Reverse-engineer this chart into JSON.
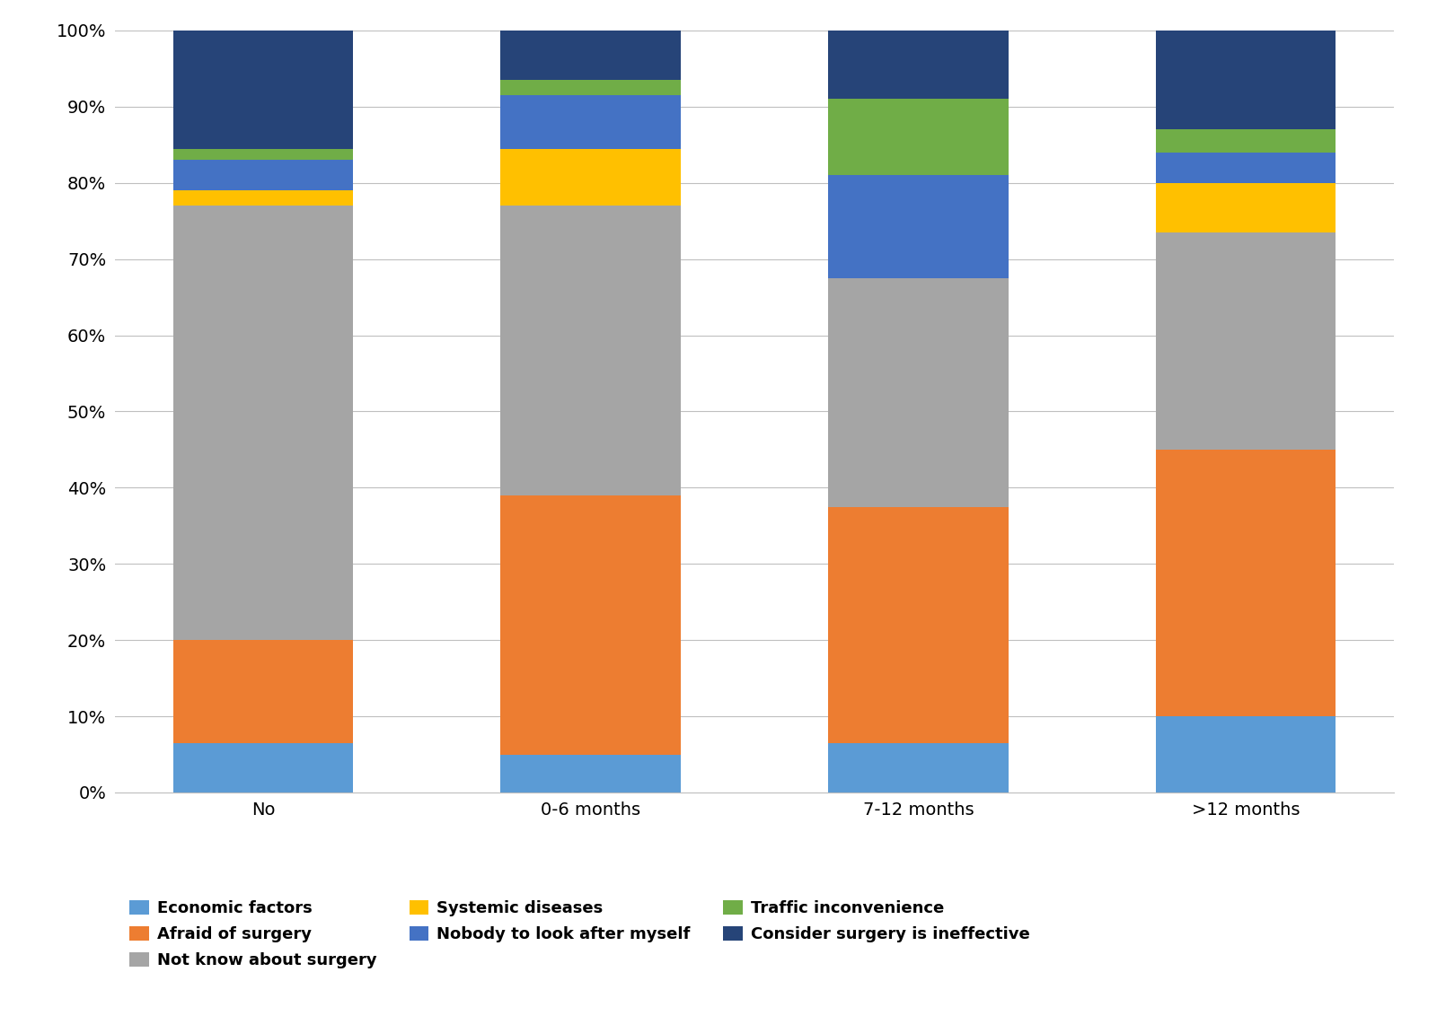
{
  "categories": [
    "No",
    "0-6 months",
    "7-12 months",
    ">12 months"
  ],
  "series": [
    {
      "label": "Economic factors",
      "color": "#5B9BD5",
      "values": [
        6.5,
        5.0,
        6.5,
        10.0
      ]
    },
    {
      "label": "Afraid of surgery",
      "color": "#ED7D31",
      "values": [
        13.5,
        34.0,
        31.0,
        35.0
      ]
    },
    {
      "label": "Not know about surgery",
      "color": "#A5A5A5",
      "values": [
        57.0,
        38.0,
        30.0,
        28.5
      ]
    },
    {
      "label": "Systemic diseases",
      "color": "#FFC000",
      "values": [
        2.0,
        7.5,
        0.0,
        6.5
      ]
    },
    {
      "label": "Nobody to look after myself",
      "color": "#4472C4",
      "values": [
        4.0,
        7.0,
        13.5,
        4.0
      ]
    },
    {
      "label": "Traffic inconvenience",
      "color": "#70AD47",
      "values": [
        1.5,
        2.0,
        10.0,
        3.0
      ]
    },
    {
      "label": "Consider surgery is ineffective",
      "color": "#264478",
      "values": [
        15.5,
        6.5,
        9.0,
        13.0
      ]
    }
  ],
  "legend_order": [
    0,
    1,
    2,
    3,
    4,
    5,
    6
  ],
  "ylim": [
    0,
    100
  ],
  "yticks": [
    0,
    10,
    20,
    30,
    40,
    50,
    60,
    70,
    80,
    90,
    100
  ],
  "yticklabels": [
    "0%",
    "10%",
    "20%",
    "30%",
    "40%",
    "50%",
    "60%",
    "70%",
    "80%",
    "90%",
    "100%"
  ],
  "background_color": "#FFFFFF",
  "grid_color": "#BFBFBF",
  "bar_width": 0.55,
  "legend_fontsize": 13,
  "tick_fontsize": 14,
  "category_fontsize": 14
}
